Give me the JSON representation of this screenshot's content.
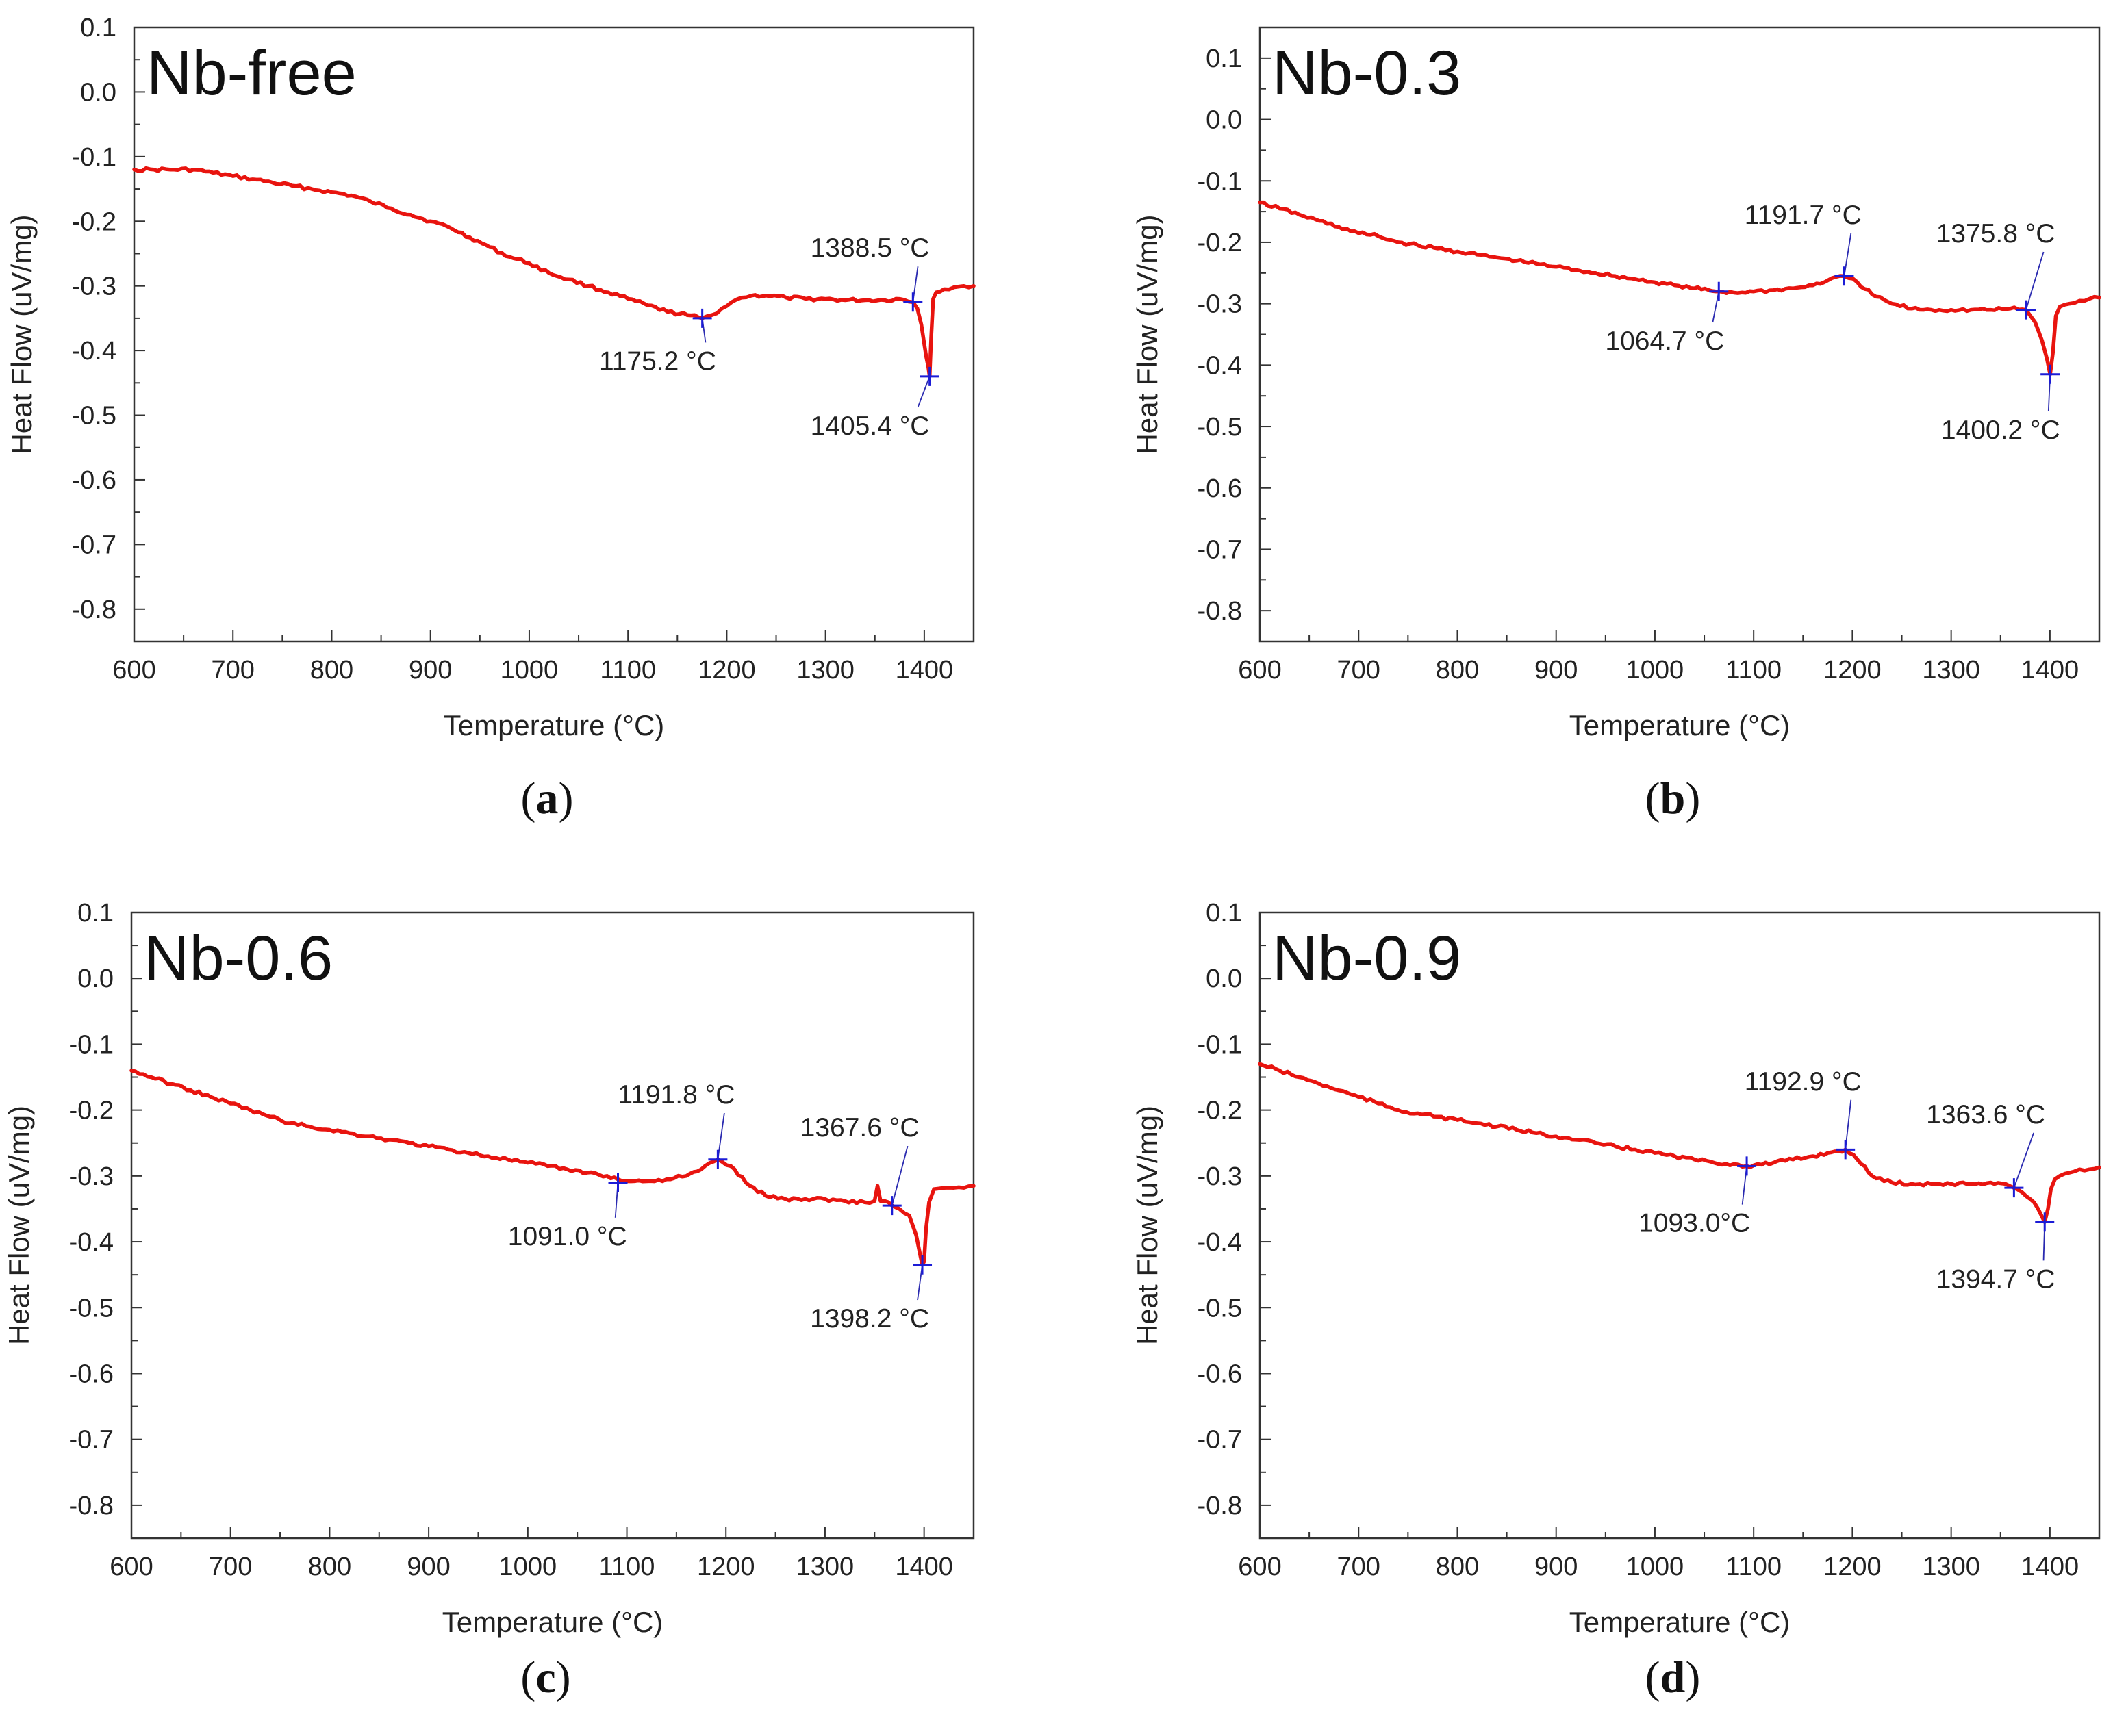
{
  "colors": {
    "curve": "#e8140f",
    "marker": "#1c1cd6",
    "leader": "#2a2ab0",
    "axis": "#333333"
  },
  "chart_data": [
    {
      "type": "line",
      "panel_label": "a",
      "title": "Nb-free",
      "xlabel": "Temperature (°C)",
      "ylabel": "Heat Flow (uV/mg)",
      "xlim": [
        600,
        1450
      ],
      "ylim": [
        -0.85,
        0.1
      ],
      "xticks": [
        600,
        700,
        800,
        900,
        1000,
        1100,
        1200,
        1300,
        1400
      ],
      "yticks": [
        0.1,
        0.0,
        -0.1,
        -0.2,
        -0.3,
        -0.4,
        -0.5,
        -0.6,
        -0.7,
        -0.8
      ],
      "ytick_labels": [
        "0.1",
        "0.0",
        "-0.1",
        "-0.2",
        "-0.3",
        "-0.4",
        "-0.5",
        "-0.6",
        "-0.7",
        "-0.8"
      ],
      "series": [
        {
          "name": "DSC curve",
          "x": [
            600,
            620,
            640,
            660,
            680,
            700,
            720,
            740,
            760,
            780,
            800,
            820,
            840,
            860,
            880,
            900,
            920,
            940,
            960,
            980,
            1000,
            1020,
            1040,
            1060,
            1080,
            1100,
            1120,
            1140,
            1160,
            1175,
            1185,
            1195,
            1205,
            1215,
            1225,
            1240,
            1260,
            1280,
            1300,
            1320,
            1340,
            1360,
            1375,
            1388.5,
            1393,
            1397,
            1400,
            1402,
            1404,
            1405.4,
            1407,
            1409,
            1412,
            1420,
            1430,
            1440,
            1450
          ],
          "y": [
            -0.12,
            -0.12,
            -0.12,
            -0.12,
            -0.125,
            -0.13,
            -0.135,
            -0.14,
            -0.145,
            -0.15,
            -0.155,
            -0.16,
            -0.17,
            -0.18,
            -0.19,
            -0.2,
            -0.21,
            -0.225,
            -0.24,
            -0.255,
            -0.265,
            -0.28,
            -0.29,
            -0.3,
            -0.31,
            -0.32,
            -0.33,
            -0.34,
            -0.345,
            -0.35,
            -0.345,
            -0.335,
            -0.325,
            -0.318,
            -0.315,
            -0.315,
            -0.318,
            -0.32,
            -0.32,
            -0.322,
            -0.322,
            -0.322,
            -0.32,
            -0.325,
            -0.335,
            -0.36,
            -0.39,
            -0.41,
            -0.425,
            -0.44,
            -0.38,
            -0.32,
            -0.31,
            -0.305,
            -0.302,
            -0.3,
            -0.3
          ]
        }
      ],
      "annotations": [
        {
          "x": 1175.2,
          "y": -0.35,
          "label": "1175.2 °C",
          "label_at": [
            1130,
            -0.43
          ]
        },
        {
          "x": 1388.5,
          "y": -0.325,
          "label": "1388.5 °C",
          "label_at": [
            1345,
            -0.255
          ]
        },
        {
          "x": 1405.4,
          "y": -0.44,
          "label": "1405.4 °C",
          "label_at": [
            1345,
            -0.53
          ]
        }
      ]
    },
    {
      "type": "line",
      "panel_label": "b",
      "title": "Nb-0.3",
      "xlabel": "Temperature (°C)",
      "ylabel": "Heat Flow (uV/mg)",
      "xlim": [
        600,
        1450
      ],
      "ylim": [
        -0.85,
        0.15
      ],
      "xticks": [
        600,
        700,
        800,
        900,
        1000,
        1100,
        1200,
        1300,
        1400
      ],
      "yticks": [
        0.1,
        0.0,
        -0.1,
        -0.2,
        -0.3,
        -0.4,
        -0.5,
        -0.6,
        -0.7,
        -0.8
      ],
      "ytick_labels": [
        "0.1",
        "0.0",
        "-0.1",
        "-0.2",
        "-0.3",
        "-0.4",
        "-0.5",
        "-0.6",
        "-0.7",
        "-0.8"
      ],
      "series": [
        {
          "name": "DSC curve",
          "x": [
            600,
            620,
            640,
            660,
            680,
            700,
            720,
            740,
            760,
            780,
            800,
            820,
            840,
            860,
            880,
            900,
            920,
            940,
            960,
            980,
            1000,
            1020,
            1040,
            1064.7,
            1080,
            1100,
            1120,
            1140,
            1160,
            1175,
            1191.7,
            1205,
            1220,
            1240,
            1260,
            1280,
            1300,
            1320,
            1340,
            1360,
            1375.8,
            1385,
            1392,
            1397,
            1400.2,
            1403,
            1406,
            1410,
            1420,
            1430,
            1440,
            1450
          ],
          "y": [
            -0.135,
            -0.145,
            -0.155,
            -0.165,
            -0.175,
            -0.185,
            -0.19,
            -0.2,
            -0.205,
            -0.21,
            -0.215,
            -0.22,
            -0.225,
            -0.23,
            -0.235,
            -0.24,
            -0.245,
            -0.25,
            -0.255,
            -0.26,
            -0.265,
            -0.27,
            -0.275,
            -0.28,
            -0.282,
            -0.28,
            -0.278,
            -0.275,
            -0.27,
            -0.262,
            -0.255,
            -0.265,
            -0.285,
            -0.3,
            -0.308,
            -0.31,
            -0.31,
            -0.31,
            -0.31,
            -0.308,
            -0.31,
            -0.33,
            -0.36,
            -0.39,
            -0.415,
            -0.38,
            -0.32,
            -0.305,
            -0.3,
            -0.295,
            -0.292,
            -0.29
          ]
        }
      ],
      "annotations": [
        {
          "x": 1064.7,
          "y": -0.28,
          "label": "1064.7 °C",
          "label_at": [
            1010,
            -0.375
          ]
        },
        {
          "x": 1191.7,
          "y": -0.255,
          "label": "1191.7 °C",
          "label_at": [
            1150,
            -0.17
          ]
        },
        {
          "x": 1375.8,
          "y": -0.31,
          "label": "1375.8 °C",
          "label_at": [
            1345,
            -0.2
          ]
        },
        {
          "x": 1400.2,
          "y": -0.415,
          "label": "1400.2 °C",
          "label_at": [
            1350,
            -0.52
          ]
        }
      ]
    },
    {
      "type": "line",
      "panel_label": "c",
      "title": "Nb-0.6",
      "xlabel": "Temperature (°C)",
      "ylabel": "Heat Flow (uV/mg)",
      "xlim": [
        600,
        1450
      ],
      "ylim": [
        -0.85,
        0.1
      ],
      "xticks": [
        600,
        700,
        800,
        900,
        1000,
        1100,
        1200,
        1300,
        1400
      ],
      "yticks": [
        0.1,
        0.0,
        -0.1,
        -0.2,
        -0.3,
        -0.4,
        -0.5,
        -0.6,
        -0.7,
        -0.8
      ],
      "ytick_labels": [
        "0.1",
        "0.0",
        "-0.1",
        "-0.2",
        "-0.3",
        "-0.4",
        "-0.5",
        "-0.6",
        "-0.7",
        "-0.8"
      ],
      "series": [
        {
          "name": "DSC curve",
          "x": [
            600,
            620,
            640,
            660,
            680,
            700,
            720,
            740,
            760,
            780,
            800,
            820,
            840,
            860,
            880,
            900,
            920,
            940,
            960,
            980,
            1000,
            1020,
            1040,
            1060,
            1080,
            1091,
            1100,
            1120,
            1140,
            1160,
            1175,
            1191.8,
            1205,
            1220,
            1240,
            1260,
            1280,
            1300,
            1320,
            1340,
            1350,
            1353,
            1356,
            1360,
            1367.6,
            1375,
            1385,
            1392,
            1396,
            1398.2,
            1400,
            1402,
            1405,
            1410,
            1420,
            1430,
            1440,
            1450
          ],
          "y": [
            -0.14,
            -0.15,
            -0.16,
            -0.17,
            -0.18,
            -0.19,
            -0.2,
            -0.21,
            -0.22,
            -0.225,
            -0.23,
            -0.235,
            -0.24,
            -0.245,
            -0.25,
            -0.255,
            -0.26,
            -0.265,
            -0.27,
            -0.275,
            -0.28,
            -0.285,
            -0.29,
            -0.295,
            -0.3,
            -0.305,
            -0.308,
            -0.308,
            -0.305,
            -0.3,
            -0.29,
            -0.275,
            -0.285,
            -0.31,
            -0.33,
            -0.335,
            -0.335,
            -0.335,
            -0.338,
            -0.34,
            -0.338,
            -0.315,
            -0.338,
            -0.338,
            -0.345,
            -0.35,
            -0.36,
            -0.39,
            -0.42,
            -0.435,
            -0.43,
            -0.38,
            -0.34,
            -0.32,
            -0.318,
            -0.318,
            -0.318,
            -0.315
          ]
        }
      ],
      "annotations": [
        {
          "x": 1091.0,
          "y": -0.31,
          "label": "1091.0 °C",
          "label_at": [
            1040,
            -0.405
          ]
        },
        {
          "x": 1191.8,
          "y": -0.275,
          "label": "1191.8 °C",
          "label_at": [
            1150,
            -0.19
          ]
        },
        {
          "x": 1367.6,
          "y": -0.345,
          "label": "1367.6 °C",
          "label_at": [
            1335,
            -0.24
          ]
        },
        {
          "x": 1398.2,
          "y": -0.435,
          "label": "1398.2 °C",
          "label_at": [
            1345,
            -0.53
          ]
        }
      ]
    },
    {
      "type": "line",
      "panel_label": "d",
      "title": "Nb-0.9",
      "xlabel": "Temperature (°C)",
      "ylabel": "Heat Flow (uV/mg)",
      "xlim": [
        600,
        1450
      ],
      "ylim": [
        -0.85,
        0.1
      ],
      "xticks": [
        600,
        700,
        800,
        900,
        1000,
        1100,
        1200,
        1300,
        1400
      ],
      "yticks": [
        0.1,
        0.0,
        -0.1,
        -0.2,
        -0.3,
        -0.4,
        -0.5,
        -0.6,
        -0.7,
        -0.8
      ],
      "ytick_labels": [
        "0.1",
        "0.0",
        "-0.1",
        "-0.2",
        "-0.3",
        "-0.4",
        "-0.5",
        "-0.6",
        "-0.7",
        "-0.8"
      ],
      "series": [
        {
          "name": "DSC curve",
          "x": [
            600,
            620,
            640,
            660,
            680,
            700,
            720,
            740,
            760,
            780,
            800,
            820,
            840,
            860,
            880,
            900,
            920,
            940,
            960,
            980,
            1000,
            1020,
            1040,
            1060,
            1080,
            1093,
            1100,
            1120,
            1140,
            1160,
            1175,
            1192.9,
            1205,
            1220,
            1240,
            1260,
            1280,
            1300,
            1320,
            1340,
            1355,
            1363.6,
            1372,
            1380,
            1388,
            1394.7,
            1398,
            1401,
            1405,
            1410,
            1420,
            1430,
            1440,
            1450
          ],
          "y": [
            -0.13,
            -0.14,
            -0.15,
            -0.16,
            -0.17,
            -0.18,
            -0.19,
            -0.2,
            -0.205,
            -0.21,
            -0.215,
            -0.22,
            -0.225,
            -0.23,
            -0.235,
            -0.24,
            -0.245,
            -0.25,
            -0.255,
            -0.26,
            -0.265,
            -0.27,
            -0.275,
            -0.28,
            -0.282,
            -0.285,
            -0.284,
            -0.28,
            -0.275,
            -0.27,
            -0.265,
            -0.26,
            -0.275,
            -0.3,
            -0.31,
            -0.312,
            -0.312,
            -0.312,
            -0.312,
            -0.31,
            -0.312,
            -0.318,
            -0.325,
            -0.335,
            -0.35,
            -0.37,
            -0.35,
            -0.32,
            -0.305,
            -0.3,
            -0.295,
            -0.29,
            -0.29,
            -0.287
          ]
        }
      ],
      "annotations": [
        {
          "x": 1093.0,
          "y": -0.285,
          "label": "1093.0°C",
          "label_at": [
            1040,
            -0.385
          ]
        },
        {
          "x": 1192.9,
          "y": -0.26,
          "label": "1192.9 °C",
          "label_at": [
            1150,
            -0.17
          ]
        },
        {
          "x": 1363.6,
          "y": -0.318,
          "label": "1363.6 °C",
          "label_at": [
            1335,
            -0.22
          ]
        },
        {
          "x": 1394.7,
          "y": -0.37,
          "label": "1394.7 °C",
          "label_at": [
            1345,
            -0.47
          ]
        }
      ]
    }
  ]
}
